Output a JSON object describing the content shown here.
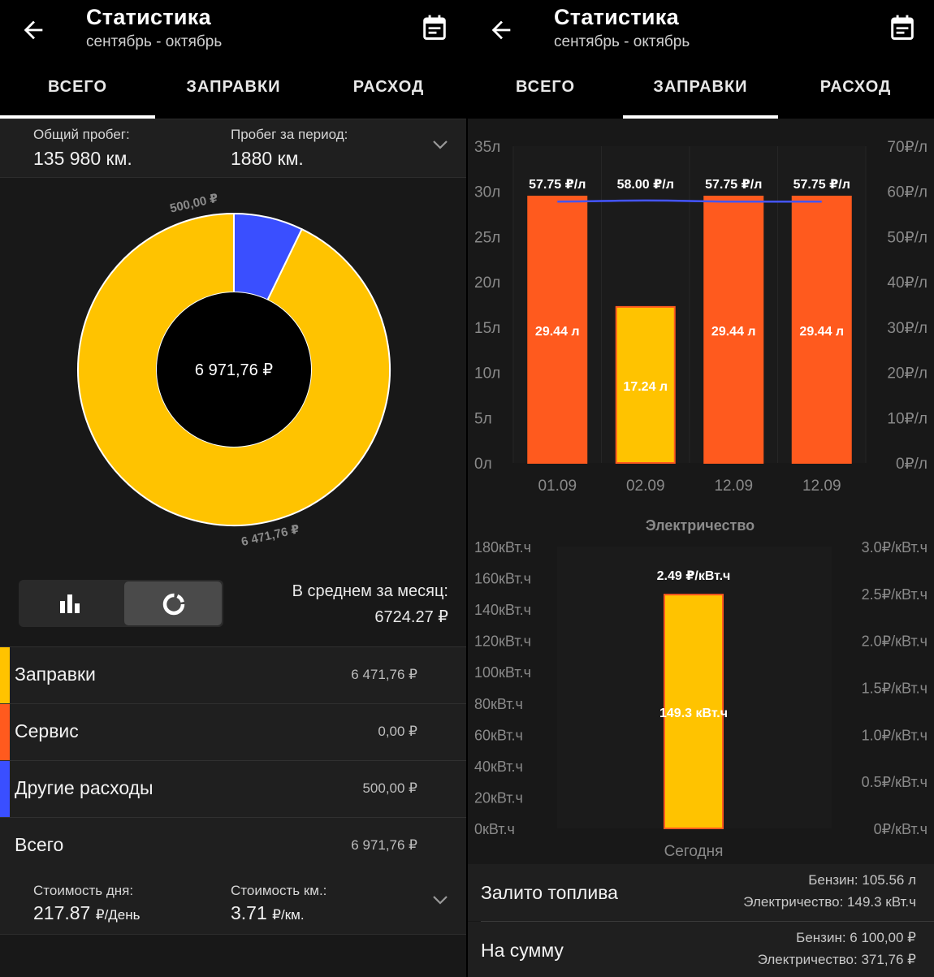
{
  "header": {
    "title": "Статистика",
    "subtitle": "сентябрь - октябрь",
    "tabs": [
      "ВСЕГО",
      "ЗАПРАВКИ",
      "РАСХОД"
    ]
  },
  "overview": {
    "total_mileage_label": "Общий пробег:",
    "total_mileage_value": "135 980 км.",
    "period_mileage_label": "Пробег за период:",
    "period_mileage_value": "1880 км.",
    "donut_center": "6 971,76 ₽",
    "donut_label_other": "500,00 ₽",
    "donut_label_fuel": "6 471,76 ₽",
    "avg_label": "В среднем за месяц:",
    "avg_value": "6724.27 ₽",
    "categories": [
      {
        "name": "Заправки",
        "amount": "6 471,76 ₽",
        "color": "#FFC300"
      },
      {
        "name": "Сервис",
        "amount": "0,00 ₽",
        "color": "#FF5A1E"
      },
      {
        "name": "Другие расходы",
        "amount": "500,00 ₽",
        "color": "#3A4FFF"
      }
    ],
    "total": {
      "name": "Всего",
      "amount": "6 971,76 ₽"
    },
    "day_cost_label": "Стоимость дня:",
    "day_cost_value": "217.87",
    "day_cost_unit": "₽/День",
    "km_cost_label": "Стоимость км.:",
    "km_cost_value": "3.71",
    "km_cost_unit": "₽/км."
  },
  "chart_data": [
    {
      "type": "pie",
      "categories": [
        "Заправки",
        "Сервис",
        "Другие расходы"
      ],
      "values": [
        6471.76,
        0.0,
        500.0
      ],
      "colors": [
        "#FFC300",
        "#FF5A1E",
        "#3A4FFF"
      ],
      "center_text": "6 971,76 ₽"
    },
    {
      "type": "bar",
      "categories": [
        "01.09",
        "02.09",
        "12.09",
        "12.09"
      ],
      "series": [
        {
          "values": [
            29.44,
            17.24,
            29.44,
            29.44
          ],
          "labels": [
            "29.44 л",
            "17.24 л",
            "29.44 л",
            "29.44 л"
          ],
          "colors": [
            "#FF5A1E",
            "#FFC300",
            "#FF5A1E",
            "#FF5A1E"
          ]
        },
        {
          "values": [
            57.75,
            58.0,
            57.75,
            57.75
          ],
          "labels": [
            "57.75 ₽/л",
            "58.00 ₽/л",
            "57.75 ₽/л",
            "57.75 ₽/л"
          ],
          "type": "line",
          "color": "#4455FF"
        }
      ],
      "y_ticks": [
        "0л",
        "5л",
        "10л",
        "15л",
        "20л",
        "25л",
        "30л",
        "35л"
      ],
      "y2_ticks": [
        "0₽/л",
        "10₽/л",
        "20₽/л",
        "30₽/л",
        "40₽/л",
        "50₽/л",
        "60₽/л",
        "70₽/л"
      ],
      "ylim": [
        0,
        35
      ],
      "y2lim": [
        0,
        70
      ]
    },
    {
      "type": "bar",
      "title": "Электричество",
      "categories": [
        "Сегодня"
      ],
      "series": [
        {
          "values": [
            149.3
          ],
          "labels": [
            "149.3 кВт.ч"
          ],
          "colors": [
            "#FFC300"
          ]
        },
        {
          "values": [
            2.49
          ],
          "labels": [
            "2.49 ₽/кВт.ч"
          ],
          "type": "line"
        }
      ],
      "y_ticks": [
        "0кВт.ч",
        "20кВт.ч",
        "40кВт.ч",
        "60кВт.ч",
        "80кВт.ч",
        "100кВт.ч",
        "120кВт.ч",
        "140кВт.ч",
        "160кВт.ч",
        "180кВт.ч"
      ],
      "y2_ticks": [
        "0₽/кВт.ч",
        "0.5₽/кВт.ч",
        "1.0₽/кВт.ч",
        "1.5₽/кВт.ч",
        "2.0₽/кВт.ч",
        "2.5₽/кВт.ч",
        "3.0₽/кВт.ч"
      ],
      "ylim": [
        0,
        180
      ],
      "y2lim": [
        0,
        3.0
      ]
    }
  ],
  "fuel_summary": {
    "filled_label": "Залито топлива",
    "filled_petrol": "Бензин: 105.56 л",
    "filled_electric": "Электричество: 149.3 кВт.ч",
    "sum_label": "На сумму",
    "sum_petrol": "Бензин: 6 100,00 ₽",
    "sum_electric": "Электричество: 371,76 ₽"
  }
}
